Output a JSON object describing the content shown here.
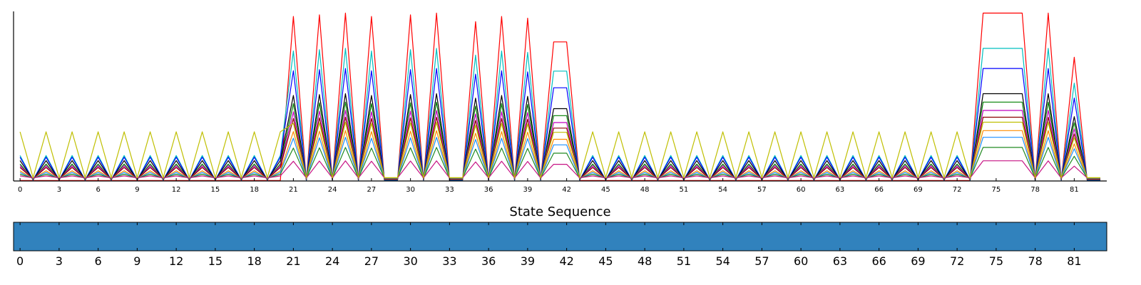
{
  "chart_data": [
    {
      "type": "line",
      "title": "",
      "xlabel": "",
      "ylabel": "",
      "xlim": [
        -0.5,
        83.5
      ],
      "ylim": [
        0,
        1.0
      ],
      "x_ticks": [
        0,
        3,
        6,
        9,
        12,
        15,
        18,
        21,
        24,
        27,
        30,
        33,
        36,
        39,
        42,
        45,
        48,
        51,
        54,
        57,
        60,
        63,
        66,
        69,
        72,
        75,
        78,
        81
      ],
      "grid": false,
      "legend": "none",
      "n_frames": 84,
      "baseline_pattern": {
        "description_of_values": "odd frames low, even frames high in quiet regions",
        "quiet_peak_frames": [
          0,
          2,
          4,
          6,
          8,
          10,
          12,
          14,
          16,
          18,
          20,
          44,
          46,
          48,
          50,
          52,
          54,
          56,
          58,
          60,
          62,
          64,
          66,
          68,
          70,
          72
        ]
      },
      "burst_peaks": [
        {
          "x": 21,
          "top": 0.97
        },
        {
          "x": 23,
          "top": 0.98
        },
        {
          "x": 25,
          "top": 0.99
        },
        {
          "x": 27,
          "top": 0.97
        },
        {
          "x": 30,
          "top": 0.98
        },
        {
          "x": 32,
          "top": 0.99
        },
        {
          "x": 35,
          "top": 0.94
        },
        {
          "x": 37,
          "top": 0.97
        },
        {
          "x": 39,
          "top": 0.96
        },
        {
          "x": 79,
          "top": 0.99
        },
        {
          "x": 81,
          "top": 0.73
        }
      ],
      "plateaus": [
        {
          "x_start": 41,
          "x_end": 42,
          "top": 0.82
        },
        {
          "x_start": 74,
          "x_end": 77,
          "top": 0.99
        }
      ],
      "series": [
        {
          "name": "",
          "color": "#ff0000",
          "scale": 1.0,
          "quiet_peak": 0.0
        },
        {
          "name": "",
          "color": "#00bfbf",
          "scale": 0.79,
          "quiet_peak": 0.15
        },
        {
          "name": "",
          "color": "#0000ff",
          "scale": 0.67,
          "quiet_peak": 0.14
        },
        {
          "name": "",
          "color": "#000000",
          "scale": 0.52,
          "quiet_peak": 0.12
        },
        {
          "name": "",
          "color": "#008000",
          "scale": 0.47,
          "quiet_peak": 0.1
        },
        {
          "name": "",
          "color": "#bf00bf",
          "scale": 0.42,
          "quiet_peak": 0.09
        },
        {
          "name": "",
          "color": "#8b0000",
          "scale": 0.38,
          "quiet_peak": 0.08
        },
        {
          "name": "",
          "color": "#ff8c00",
          "scale": 0.3,
          "quiet_peak": 0.06
        },
        {
          "name": "",
          "color": "#1e90ff",
          "scale": 0.26,
          "quiet_peak": 0.05
        },
        {
          "name": "",
          "color": "#228b22",
          "scale": 0.2,
          "quiet_peak": 0.04
        },
        {
          "name": "",
          "color": "#c71585",
          "scale": 0.12,
          "quiet_peak": 0.03
        },
        {
          "name": "",
          "color": "#bfbf00",
          "scale": 0.35,
          "quiet_peak": 0.29
        }
      ]
    },
    {
      "type": "heatmap",
      "title": "State Sequence",
      "xlabel": "",
      "ylabel": "",
      "xlim": [
        -0.5,
        83.5
      ],
      "x_ticks": [
        0,
        3,
        6,
        9,
        12,
        15,
        18,
        21,
        24,
        27,
        30,
        33,
        36,
        39,
        42,
        45,
        48,
        51,
        54,
        57,
        60,
        63,
        66,
        69,
        72,
        75,
        78,
        81
      ],
      "states": [
        {
          "state": 0,
          "x_start": 0,
          "x_end": 83,
          "color": "#3182bd"
        }
      ]
    }
  ]
}
